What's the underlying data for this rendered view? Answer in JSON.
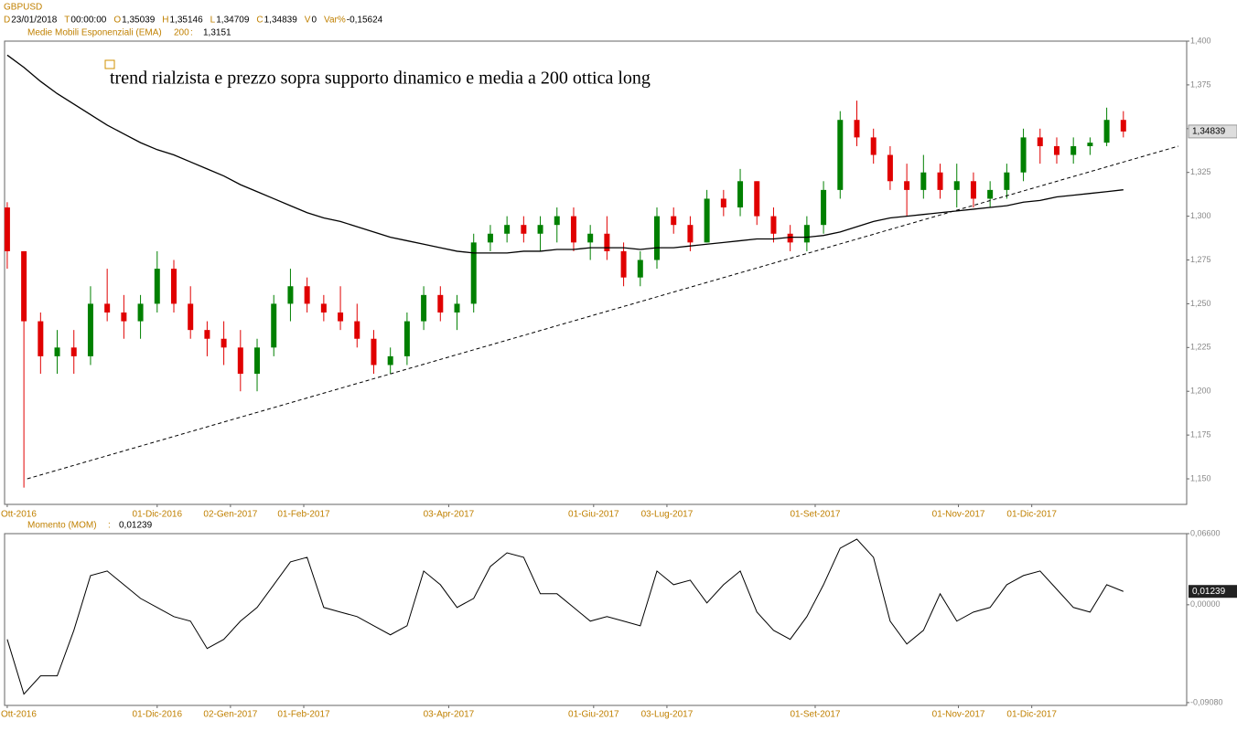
{
  "header": {
    "symbol": "GBPUSD",
    "fields": [
      {
        "key": "D",
        "value": "23/01/2018"
      },
      {
        "key": "T",
        "value": "00:00:00"
      },
      {
        "key": "O",
        "value": "1,35039"
      },
      {
        "key": "H",
        "value": "1,35146"
      },
      {
        "key": "L",
        "value": "1,34709"
      },
      {
        "key": "C",
        "value": "1,34839"
      },
      {
        "key": "V",
        "value": "0"
      },
      {
        "key": "Var%",
        "value": "-0,15624"
      }
    ]
  },
  "chart_data": [
    {
      "type": "candlestick",
      "up_color": "#008000",
      "down_color": "#e00000",
      "open": [
        1.305,
        1.28,
        1.24,
        1.22,
        1.225,
        1.22,
        1.25,
        1.245,
        1.24,
        1.25,
        1.27,
        1.25,
        1.235,
        1.23,
        1.225,
        1.21,
        1.225,
        1.25,
        1.26,
        1.25,
        1.245,
        1.24,
        1.23,
        1.215,
        1.22,
        1.24,
        1.255,
        1.245,
        1.25,
        1.285,
        1.29,
        1.295,
        1.29,
        1.295,
        1.3,
        1.285,
        1.29,
        1.28,
        1.265,
        1.275,
        1.3,
        1.295,
        1.285,
        1.31,
        1.305,
        1.32,
        1.3,
        1.29,
        1.285,
        1.295,
        1.315,
        1.355,
        1.345,
        1.335,
        1.32,
        1.315,
        1.325,
        1.315,
        1.32,
        1.31,
        1.315,
        1.325,
        1.345,
        1.34,
        1.335,
        1.34,
        1.342,
        1.355
      ],
      "high": [
        1.308,
        1.28,
        1.245,
        1.235,
        1.235,
        1.26,
        1.27,
        1.255,
        1.255,
        1.28,
        1.275,
        1.26,
        1.24,
        1.24,
        1.235,
        1.23,
        1.255,
        1.27,
        1.265,
        1.255,
        1.26,
        1.25,
        1.235,
        1.225,
        1.245,
        1.26,
        1.26,
        1.255,
        1.29,
        1.295,
        1.3,
        1.3,
        1.3,
        1.305,
        1.305,
        1.295,
        1.3,
        1.285,
        1.28,
        1.305,
        1.305,
        1.3,
        1.315,
        1.315,
        1.327,
        1.32,
        1.305,
        1.295,
        1.3,
        1.32,
        1.36,
        1.366,
        1.35,
        1.34,
        1.33,
        1.335,
        1.33,
        1.33,
        1.325,
        1.32,
        1.33,
        1.35,
        1.35,
        1.345,
        1.345,
        1.345,
        1.362,
        1.36
      ],
      "low": [
        1.27,
        1.145,
        1.21,
        1.21,
        1.21,
        1.215,
        1.24,
        1.23,
        1.23,
        1.245,
        1.245,
        1.23,
        1.22,
        1.215,
        1.2,
        1.2,
        1.22,
        1.24,
        1.245,
        1.24,
        1.235,
        1.225,
        1.21,
        1.21,
        1.215,
        1.235,
        1.24,
        1.235,
        1.245,
        1.28,
        1.285,
        1.285,
        1.28,
        1.285,
        1.28,
        1.275,
        1.275,
        1.26,
        1.26,
        1.27,
        1.29,
        1.28,
        1.285,
        1.3,
        1.3,
        1.295,
        1.285,
        1.28,
        1.28,
        1.29,
        1.31,
        1.34,
        1.33,
        1.315,
        1.3,
        1.31,
        1.31,
        1.305,
        1.305,
        1.305,
        1.31,
        1.32,
        1.33,
        1.33,
        1.33,
        1.335,
        1.34,
        1.345
      ],
      "close": [
        1.28,
        1.24,
        1.22,
        1.225,
        1.22,
        1.25,
        1.245,
        1.24,
        1.25,
        1.27,
        1.25,
        1.235,
        1.23,
        1.225,
        1.21,
        1.225,
        1.25,
        1.26,
        1.25,
        1.245,
        1.24,
        1.23,
        1.215,
        1.22,
        1.24,
        1.255,
        1.245,
        1.25,
        1.285,
        1.29,
        1.295,
        1.29,
        1.295,
        1.3,
        1.285,
        1.29,
        1.28,
        1.265,
        1.275,
        1.3,
        1.295,
        1.285,
        1.31,
        1.305,
        1.32,
        1.3,
        1.29,
        1.285,
        1.295,
        1.315,
        1.355,
        1.345,
        1.335,
        1.32,
        1.315,
        1.325,
        1.315,
        1.32,
        1.31,
        1.315,
        1.325,
        1.345,
        1.34,
        1.335,
        1.34,
        1.342,
        1.355,
        1.34839
      ],
      "ema": {
        "name": "Medie Mobili Esponenziali (EMA)",
        "period": 200,
        "value_label": "1,3151",
        "color": "#000000",
        "values": [
          1.392,
          1.385,
          1.377,
          1.37,
          1.364,
          1.358,
          1.352,
          1.347,
          1.342,
          1.338,
          1.335,
          1.331,
          1.327,
          1.323,
          1.318,
          1.314,
          1.31,
          1.306,
          1.302,
          1.299,
          1.297,
          1.294,
          1.291,
          1.288,
          1.286,
          1.284,
          1.282,
          1.28,
          1.279,
          1.279,
          1.279,
          1.28,
          1.28,
          1.281,
          1.281,
          1.282,
          1.282,
          1.282,
          1.281,
          1.282,
          1.282,
          1.283,
          1.284,
          1.285,
          1.286,
          1.287,
          1.287,
          1.288,
          1.288,
          1.289,
          1.291,
          1.294,
          1.297,
          1.299,
          1.3,
          1.301,
          1.302,
          1.303,
          1.304,
          1.305,
          1.306,
          1.308,
          1.309,
          1.311,
          1.312,
          1.313,
          1.314,
          1.3151
        ]
      },
      "trendline": {
        "x": [
          1.2,
          70.3
        ],
        "y": [
          1.15,
          1.34
        ]
      },
      "annotation": "trend rialzista e prezzo sopra supporto dinamico e media a 200 ottica long",
      "xlim": [
        -0.16,
        70.8
      ],
      "ylim": [
        1.1354,
        1.4
      ],
      "xticks": [
        {
          "value": 0,
          "label": "Ott-2016"
        },
        {
          "value": 9,
          "label": "01-Dic-2016"
        },
        {
          "value": 13.4,
          "label": "02-Gen-2017"
        },
        {
          "value": 17.8,
          "label": "01-Feb-2017"
        },
        {
          "value": 26.5,
          "label": "03-Apr-2017"
        },
        {
          "value": 35.2,
          "label": "01-Giu-2017"
        },
        {
          "value": 39.6,
          "label": "03-Lug-2017"
        },
        {
          "value": 48.5,
          "label": "01-Set-2017"
        },
        {
          "value": 57.1,
          "label": "01-Nov-2017"
        },
        {
          "value": 61.5,
          "label": "01-Dic-2017"
        }
      ],
      "yticks": [
        {
          "value": 1.15,
          "label": "1,150"
        },
        {
          "value": 1.175,
          "label": "1,175"
        },
        {
          "value": 1.2,
          "label": "1,200"
        },
        {
          "value": 1.225,
          "label": "1,225"
        },
        {
          "value": 1.25,
          "label": "1,250"
        },
        {
          "value": 1.275,
          "label": "1,275"
        },
        {
          "value": 1.3,
          "label": "1,300"
        },
        {
          "value": 1.325,
          "label": "1,325"
        },
        {
          "value": 1.35,
          "label": "1,350"
        },
        {
          "value": 1.375,
          "label": "1,375"
        },
        {
          "value": 1.4,
          "label": "1,400"
        }
      ]
    },
    {
      "type": "line",
      "name": "Momento (MOM)",
      "value_label": "0,01239",
      "color": "#000000",
      "values": [
        -0.0321,
        -0.0829,
        -0.066,
        -0.066,
        -0.0237,
        0.0271,
        0.0313,
        0.0186,
        0.0059,
        -0.0025,
        -0.011,
        -0.0152,
        -0.0406,
        -0.0321,
        -0.0152,
        -0.0025,
        0.0186,
        0.0398,
        0.044,
        -0.0025,
        -0.0068,
        -0.011,
        -0.0195,
        -0.0279,
        -0.0195,
        0.0313,
        0.0186,
        -0.0025,
        0.0059,
        0.0355,
        0.0482,
        0.044,
        0.0102,
        0.0102,
        -0.0025,
        -0.0152,
        -0.011,
        -0.0152,
        -0.0195,
        0.0313,
        0.0186,
        0.0228,
        0.0017,
        0.0186,
        0.0313,
        -0.0068,
        -0.0237,
        -0.0321,
        -0.011,
        0.0186,
        0.0525,
        0.0609,
        0.044,
        -0.0152,
        -0.0364,
        -0.0237,
        0.0102,
        -0.0152,
        -0.0068,
        -0.0025,
        0.0186,
        0.0271,
        0.0313,
        0.0144,
        -0.0025,
        -0.0068,
        0.0186,
        0.01239
      ],
      "xlim": [
        -0.16,
        70.8
      ],
      "ylim": [
        -0.0934,
        0.066
      ],
      "yticks": [
        {
          "value": 0.066,
          "label": "0,06600"
        },
        {
          "value": 0,
          "label": "0,00000"
        },
        {
          "value": -0.0908,
          "label": "-0,09080"
        }
      ]
    }
  ]
}
